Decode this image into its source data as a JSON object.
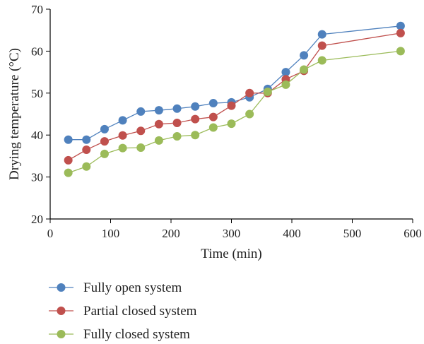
{
  "chart_data": {
    "type": "line",
    "title": "",
    "xlabel": "Time (min)",
    "ylabel": "Drying temperature (°C)",
    "xlim": [
      0,
      600
    ],
    "ylim": [
      20,
      70
    ],
    "xticks": [
      0,
      100,
      200,
      300,
      400,
      500,
      600
    ],
    "yticks": [
      20,
      30,
      40,
      50,
      60,
      70
    ],
    "grid": false,
    "legend_position": "bottom",
    "series": [
      {
        "name": "Fully open system",
        "color": "#4f81bd",
        "x": [
          30,
          60,
          90,
          120,
          150,
          180,
          210,
          240,
          270,
          300,
          330,
          360,
          390,
          420,
          450,
          580
        ],
        "y": [
          38.9,
          38.9,
          41.4,
          43.5,
          45.6,
          45.9,
          46.3,
          46.8,
          47.6,
          47.8,
          49.0,
          51.0,
          55.0,
          59.0,
          64.0,
          66.0
        ]
      },
      {
        "name": "Partial closed system",
        "color": "#c0504d",
        "x": [
          30,
          60,
          90,
          120,
          150,
          180,
          210,
          240,
          270,
          300,
          330,
          360,
          390,
          420,
          450,
          580
        ],
        "y": [
          34.0,
          36.5,
          38.5,
          39.9,
          41.0,
          42.6,
          42.9,
          43.8,
          44.3,
          47.0,
          50.0,
          50.0,
          53.3,
          55.3,
          61.3,
          64.3
        ]
      },
      {
        "name": "Fully closed system",
        "color": "#9bbb59",
        "x": [
          30,
          60,
          90,
          120,
          150,
          180,
          210,
          240,
          270,
          300,
          330,
          360,
          390,
          420,
          450,
          580
        ],
        "y": [
          31.0,
          32.5,
          35.5,
          36.9,
          37.0,
          38.7,
          39.7,
          40.0,
          41.8,
          42.7,
          45.0,
          50.3,
          52.0,
          55.6,
          57.8,
          60.0
        ]
      }
    ]
  }
}
